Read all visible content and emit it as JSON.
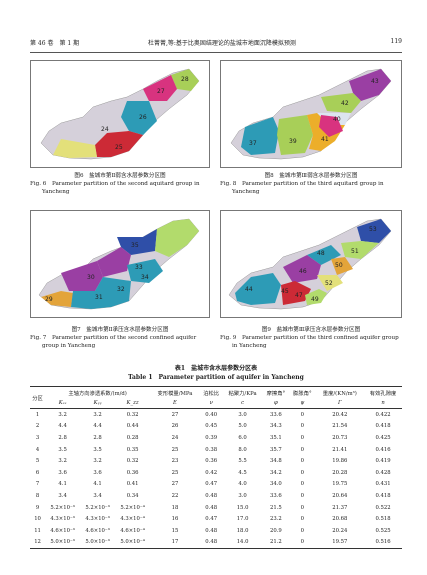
{
  "header": {
    "volume": "第 46 卷　第 1 期",
    "title": "杜菁菁,等:基于比奥固结理论的盐城市地面沉降模拟预测",
    "page": "119"
  },
  "figures": {
    "fig6": {
      "caption_zh": "图6　盐城市第Ⅱ弱含水层参数分区图",
      "caption_en": "Fig. 6　Parameter partition of the second aquitard group in Yancheng",
      "labels": [
        "28",
        "27",
        "26",
        "24",
        "25"
      ]
    },
    "fig8": {
      "caption_zh": "图8　盐城市第Ⅲ弱含水层参数分区图",
      "caption_en": "Fig. 8　Parameter partition of the third aquitard group in Yancheng",
      "labels": [
        "43",
        "42",
        "40",
        "37",
        "39",
        "41"
      ]
    },
    "fig7": {
      "caption_zh": "图7　盐城市第Ⅱ承压含水层参数分区图",
      "caption_en": "Fig. 7　Parameter partition of the second confined aquifer group in Yancheng",
      "labels": [
        "35",
        "30",
        "33",
        "34",
        "29",
        "31",
        "32"
      ]
    },
    "fig9": {
      "caption_zh": "图9　盐城市第Ⅲ承压含水层参数分区图",
      "caption_en": "Fig. 9　Parameter partition of the third confined aquifer group in Yancheng",
      "labels": [
        "53",
        "51",
        "48",
        "50",
        "46",
        "52",
        "44",
        "47",
        "45",
        "49"
      ]
    }
  },
  "table": {
    "caption_zh": "表1　盐城市含水层参数分区表",
    "caption_en": "Table 1　Parameter partition of aquifer in Yancheng",
    "head_zh": [
      "分区",
      "主轴方向渗透系数/(m/d)",
      "变形模量/MPa",
      "泊松比",
      "粘聚力/KPa",
      "摩擦角°",
      "膨胀角°",
      "重度/(KN/m³)",
      "有效孔隙度"
    ],
    "head_sym": [
      "Kₓₓ",
      "Kᵧᵧ",
      "K_zz",
      "E",
      "ν",
      "c",
      "φ",
      "ψ",
      "Γ",
      "n"
    ],
    "rows": [
      [
        "1",
        "3.2",
        "3.2",
        "0.32",
        "27",
        "0.40",
        "3.0",
        "33.6",
        "0",
        "20.42",
        "0.422"
      ],
      [
        "2",
        "4.4",
        "4.4",
        "0.44",
        "26",
        "0.45",
        "5.0",
        "34.3",
        "0",
        "21.54",
        "0.418"
      ],
      [
        "3",
        "2.8",
        "2.8",
        "0.28",
        "24",
        "0.39",
        "6.0",
        "35.1",
        "0",
        "20.73",
        "0.425"
      ],
      [
        "4",
        "3.5",
        "3.5",
        "0.35",
        "25",
        "0.38",
        "8.0",
        "35.7",
        "0",
        "21.41",
        "0.416"
      ],
      [
        "5",
        "3.2",
        "3.2",
        "0.32",
        "23",
        "0.36",
        "5.5",
        "34.8",
        "0",
        "19.86",
        "0.419"
      ],
      [
        "6",
        "3.6",
        "3.6",
        "0.36",
        "25",
        "0.42",
        "4.5",
        "34.2",
        "0",
        "20.28",
        "0.428"
      ],
      [
        "7",
        "4.1",
        "4.1",
        "0.41",
        "27",
        "0.47",
        "4.0",
        "34.0",
        "0",
        "19.75",
        "0.431"
      ],
      [
        "8",
        "3.4",
        "3.4",
        "0.34",
        "22",
        "0.48",
        "3.0",
        "33.6",
        "0",
        "20.64",
        "0.418"
      ],
      [
        "9",
        "5.2×10⁻³",
        "5.2×10⁻³",
        "5.2×10⁻⁴",
        "18",
        "0.48",
        "15.0",
        "21.5",
        "0",
        "21.37",
        "0.522"
      ],
      [
        "10",
        "4.3×10⁻³",
        "4.3×10⁻³",
        "4.3×10⁻⁴",
        "16",
        "0.47",
        "17.0",
        "23.2",
        "0",
        "20.68",
        "0.518"
      ],
      [
        "11",
        "4.6×10⁻³",
        "4.6×10⁻³",
        "4.6×10⁻⁴",
        "15",
        "0.48",
        "18.0",
        "20.9",
        "0",
        "20.24",
        "0.525"
      ],
      [
        "12",
        "5.0×10⁻³",
        "5.0×10⁻³",
        "5.0×10⁻⁴",
        "17",
        "0.48",
        "14.0",
        "21.2",
        "0",
        "19.57",
        "0.516"
      ]
    ]
  }
}
